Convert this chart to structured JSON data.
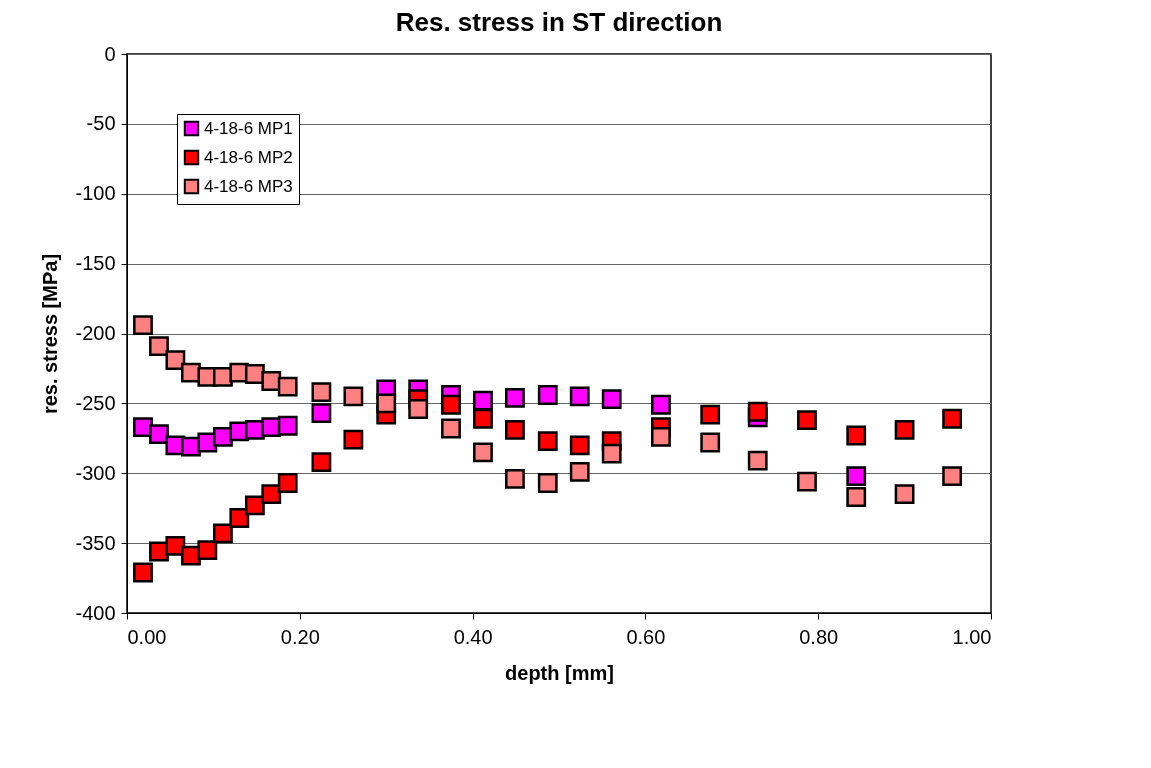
{
  "chart_data": {
    "type": "scatter",
    "title": "Res. stress in ST direction",
    "xlabel": "depth [mm]",
    "ylabel": "res. stress [MPa]",
    "x": [
      0.0185,
      0.037,
      0.056,
      0.074,
      0.093,
      0.111,
      0.13,
      0.148,
      0.167,
      0.186,
      0.225,
      0.262,
      0.3,
      0.337,
      0.375,
      0.412,
      0.449,
      0.487,
      0.524,
      0.561,
      0.618,
      0.675,
      0.73,
      0.787,
      0.844,
      0.9,
      0.955
    ],
    "series": [
      {
        "name": "4-18-6 MP1",
        "color": "#ff00ff",
        "values": [
          -267,
          -272,
          -280,
          -281,
          -278,
          -274,
          -270,
          -269,
          -267,
          -266,
          -257,
          null,
          -240,
          -240,
          -244,
          -248,
          -246,
          -244,
          -245,
          -247,
          -251,
          null,
          -260,
          null,
          -302,
          null,
          null
        ]
      },
      {
        "name": "4-18-6 MP2",
        "color": "#ff0000",
        "values": [
          -371,
          -356,
          -352,
          -359,
          -355,
          -343,
          -332,
          -323,
          -315,
          -307,
          -292,
          -276,
          -258,
          -247,
          -251,
          -261,
          -269,
          -277,
          -280,
          -277,
          -267,
          -258,
          -256,
          -262,
          -273,
          -269,
          -261
        ]
      },
      {
        "name": "4-18-6 MP3",
        "color": "#ff8080",
        "values": [
          -194,
          -209,
          -219,
          -228,
          -231,
          -231,
          -228,
          -229,
          -234,
          -238,
          -242,
          -245,
          -250,
          -254,
          -268,
          -285,
          -304,
          -307,
          -299,
          -286,
          -274,
          -278,
          -291,
          -306,
          -317,
          -315,
          -302
        ]
      }
    ],
    "xlim": [
      0,
      1
    ],
    "xticks": [
      {
        "value": 0,
        "label": "0.00"
      },
      {
        "value": 0.2,
        "label": "0.20"
      },
      {
        "value": 0.4,
        "label": "0.40"
      },
      {
        "value": 0.6,
        "label": "0.60"
      },
      {
        "value": 0.8,
        "label": "0.80"
      },
      {
        "value": 1,
        "label": "1.00"
      }
    ],
    "ylim": [
      -400,
      0
    ],
    "yticks": [
      -400,
      -350,
      -300,
      -250,
      -200,
      -150,
      -100,
      -50,
      0
    ],
    "grid": "y",
    "legend": "top left",
    "marker": "square"
  }
}
